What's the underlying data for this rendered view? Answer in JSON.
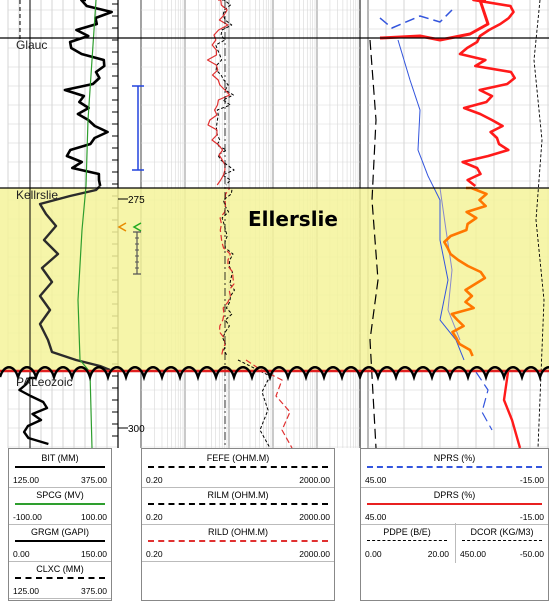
{
  "zone": {
    "name": "Ellerslie",
    "color": "#f5f39a"
  },
  "tops": [
    {
      "name": "Glauc",
      "depth_label": ""
    },
    {
      "name": "Kellrslie",
      "depth_label": "275"
    },
    {
      "name": "PALeozoic",
      "depth_label": "300"
    }
  ],
  "header": {
    "track1": [
      {
        "name": "BIT (MM)",
        "min": "125.00",
        "max": "375.00",
        "color": "#000000",
        "style": "solid"
      },
      {
        "name": "SPCG (MV)",
        "min": "-100.00",
        "max": "100.00",
        "color": "#2e9e2e",
        "style": "solid"
      },
      {
        "name": "GRGM (GAPI)",
        "min": "0.00",
        "max": "150.00",
        "color": "#000000",
        "style": "solid"
      },
      {
        "name": "CLXC (MM)",
        "min": "125.00",
        "max": "375.00",
        "color": "#000000",
        "style": "dashed"
      }
    ],
    "track2": [
      {
        "name": "FEFE (OHM.M)",
        "min": "0.20",
        "max": "2000.00",
        "color": "#000000",
        "style": "dashed"
      },
      {
        "name": "RILM (OHM.M)",
        "min": "0.20",
        "max": "2000.00",
        "color": "#000000",
        "style": "dashdot"
      },
      {
        "name": "RILD (OHM.M)",
        "min": "0.20",
        "max": "2000.00",
        "color": "#e03030",
        "style": "dashed"
      }
    ],
    "track3": [
      {
        "name": "NPRS (%)",
        "min": "45.00",
        "max": "-15.00",
        "color": "#3355dd",
        "style": "dashed"
      },
      {
        "name": "DPRS (%)",
        "min": "45.00",
        "max": "-15.00",
        "color": "#e82020",
        "style": "solid"
      }
    ],
    "track3_sub": [
      {
        "name": "PDPE (B/E)",
        "min": "0.00",
        "max": "20.00",
        "color": "#000000"
      },
      {
        "name": "DCOR (KG/M3)",
        "min": "450.00",
        "max": "-50.00",
        "color": "#000000"
      }
    ]
  }
}
